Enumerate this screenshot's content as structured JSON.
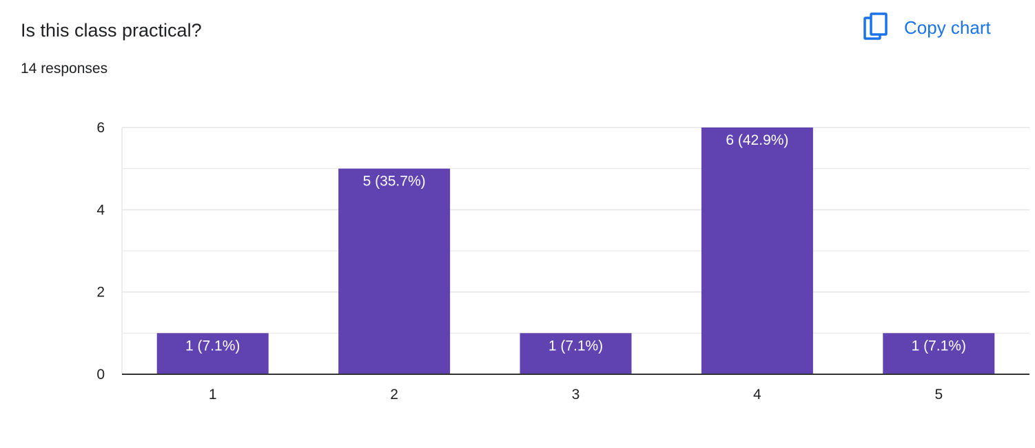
{
  "header": {
    "title": "Is this class practical?",
    "responses": "14 responses",
    "copy_label": "Copy chart",
    "copy_icon": "copy-icon"
  },
  "colors": {
    "bar": "#6043b0",
    "accent": "#1a73e8",
    "grid": "#e6e6e6",
    "axis": "#333333"
  },
  "chart_data": {
    "type": "bar",
    "title": "Is this class practical?",
    "categories": [
      "1",
      "2",
      "3",
      "4",
      "5"
    ],
    "values": [
      1,
      5,
      1,
      6,
      1
    ],
    "data_labels": [
      "1 (7.1%)",
      "5 (35.7%)",
      "1 (7.1%)",
      "6 (42.9%)",
      "1 (7.1%)"
    ],
    "ylim": [
      0,
      6
    ],
    "yticks": [
      0,
      2,
      4,
      6
    ],
    "gridlines": [
      0,
      1,
      2,
      3,
      4,
      5,
      6
    ],
    "grid": true,
    "legend": "none"
  }
}
